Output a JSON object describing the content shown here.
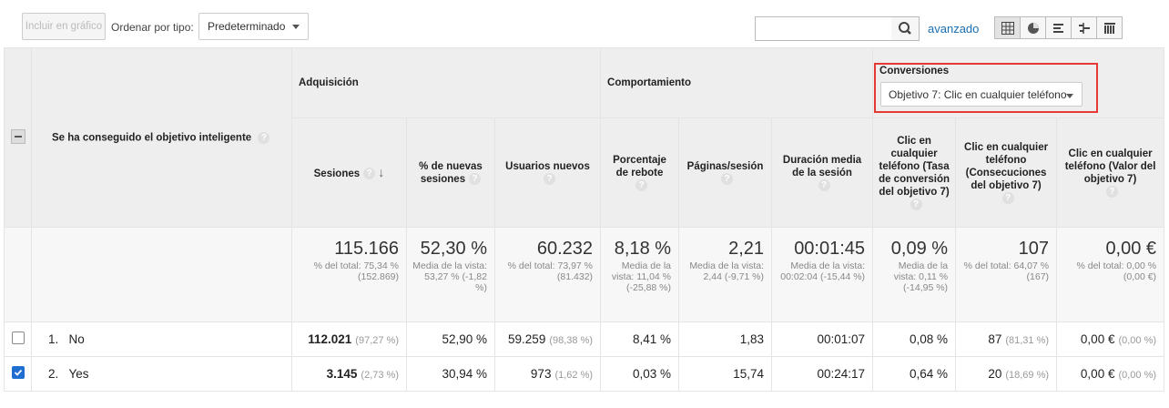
{
  "toolbar": {
    "include_chart_label": "Incluir en gráfico",
    "order_by_label": "Ordenar por tipo:",
    "order_by_value": "Predeterminado",
    "search_placeholder": "",
    "advanced_label": "avanzado",
    "view_icons": [
      "grid-view-icon",
      "pie-view-icon",
      "performance-view-icon",
      "comparison-view-icon",
      "pivot-view-icon"
    ]
  },
  "table": {
    "dimension_header": "Se ha conseguido el objetivo inteligente",
    "groups": {
      "acquisition": "Adquisición",
      "behavior": "Comportamiento",
      "conversions": "Conversiones"
    },
    "conversion_goal_select": "Objetivo 7: Clic en cualquier teléfono",
    "columns": [
      "Sesiones",
      "% de nuevas sesiones",
      "Usuarios nuevos",
      "Porcentaje de rebote",
      "Páginas/sesión",
      "Duración media de la sesión",
      "Clic en cualquier teléfono (Tasa de conversión del objetivo 7)",
      "Clic en cualquier teléfono (Consecuciones del objetivo 7)",
      "Clic en cualquier teléfono (Valor del objetivo 7)"
    ],
    "totals": [
      {
        "value": "115.166",
        "sub": "% del total: 75,34 % (152.869)"
      },
      {
        "value": "52,30 %",
        "sub": "Media de la vista: 53,27 % (-1,82 %)"
      },
      {
        "value": "60.232",
        "sub": "% del total: 73,97 % (81.432)"
      },
      {
        "value": "8,18 %",
        "sub": "Media de la vista: 11,04 % (-25,88 %)"
      },
      {
        "value": "2,21",
        "sub": "Media de la vista: 2,44 (-9,71 %)"
      },
      {
        "value": "00:01:45",
        "sub": "Media de la vista: 00:02:04 (-15,44 %)"
      },
      {
        "value": "0,09 %",
        "sub": "Media de la vista: 0,11 % (-14,95 %)"
      },
      {
        "value": "107",
        "sub": "% del total: 64,07 % (167)"
      },
      {
        "value": "0,00 €",
        "sub": "% del total: 0,00 % (0,00 €)"
      }
    ],
    "rows": [
      {
        "index": "1.",
        "name": "No",
        "checked": false,
        "sessions": "112.021",
        "sessions_pct": "(97,27 %)",
        "new_sessions": "52,90 %",
        "new_users": "59.259",
        "new_users_pct": "(98,38 %)",
        "bounce": "8,41 %",
        "pages": "1,83",
        "duration": "00:01:07",
        "conv_rate": "0,08 %",
        "completions": "87",
        "completions_pct": "(81,31 %)",
        "value": "0,00 €",
        "value_pct": "(0,00 %)"
      },
      {
        "index": "2.",
        "name": "Yes",
        "checked": true,
        "sessions": "3.145",
        "sessions_pct": "(2,73 %)",
        "new_sessions": "30,94 %",
        "new_users": "973",
        "new_users_pct": "(1,62 %)",
        "bounce": "0,03 %",
        "pages": "15,74",
        "duration": "00:24:17",
        "conv_rate": "0,64 %",
        "completions": "20",
        "completions_pct": "(18,69 %)",
        "value": "0,00 €",
        "value_pct": "(0,00 %)"
      }
    ]
  },
  "colors": {
    "accent": "#1a6fb3",
    "highlight_border": "#e53935",
    "checkbox_checked": "#1f6fd1"
  }
}
